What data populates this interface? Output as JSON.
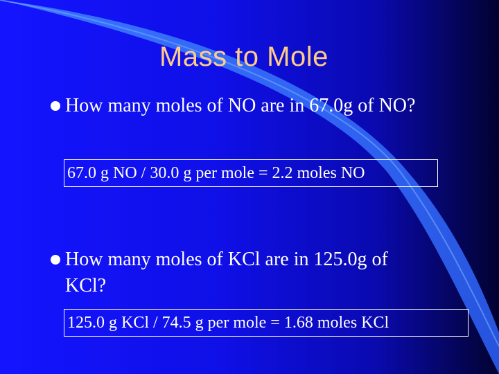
{
  "slide": {
    "title": "Mass to Mole",
    "questions": [
      {
        "text": "How many moles of NO are in 67.0g of NO?",
        "answer": "67.0 g NO  /  30.0 g per mole  =  2.2 moles NO"
      },
      {
        "text": "How many moles of KCl are in 125.0g of KCl?",
        "answer": "125.0 g KCl  /  74.5 g per mole  =  1.68 moles KCl"
      }
    ],
    "colors": {
      "background": "#1414ff",
      "title": "#ffcc88",
      "text": "#ffffff",
      "curve": "#4a8cff"
    },
    "bullet_icon": "bullet-disc-icon"
  }
}
